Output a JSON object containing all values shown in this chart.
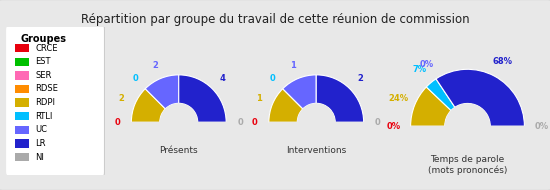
{
  "title": "Répartition par groupe du travail de cette réunion de commission",
  "background_color": "#e8e8e8",
  "legend_bg": "#ffffff",
  "legend_title": "Groupes",
  "groups": [
    "CRCE",
    "EST",
    "SER",
    "RDSE",
    "RDPI",
    "RTLI",
    "UC",
    "LR",
    "NI"
  ],
  "group_colors": [
    "#e8000d",
    "#00c000",
    "#ff69b4",
    "#ff8c00",
    "#d4af00",
    "#00bfff",
    "#6666ff",
    "#2222cc",
    "#aaaaaa"
  ],
  "charts": [
    {
      "title": "Présents",
      "values": [
        0,
        0,
        0,
        0,
        2,
        0,
        2,
        4,
        0
      ],
      "show_labels": [
        true,
        false,
        false,
        false,
        true,
        true,
        true,
        true,
        true
      ],
      "labels": [
        "0",
        "",
        "",
        "",
        "2",
        "0",
        "2",
        "4",
        "0"
      ]
    },
    {
      "title": "Interventions",
      "values": [
        0,
        0,
        0,
        0,
        1,
        0,
        1,
        2,
        0
      ],
      "show_labels": [
        true,
        false,
        false,
        false,
        true,
        true,
        true,
        true,
        true
      ],
      "labels": [
        "0",
        "",
        "",
        "",
        "1",
        "0",
        "1",
        "2",
        "0"
      ]
    },
    {
      "title": "Temps de parole\n(mots prononcés)",
      "values": [
        0,
        0,
        0,
        0,
        24,
        7,
        0,
        68,
        0
      ],
      "show_labels": [
        true,
        false,
        false,
        false,
        true,
        true,
        true,
        true,
        true
      ],
      "labels": [
        "0%",
        "",
        "",
        "",
        "24%",
        "7%",
        "0%",
        "68%",
        "0%"
      ]
    }
  ]
}
